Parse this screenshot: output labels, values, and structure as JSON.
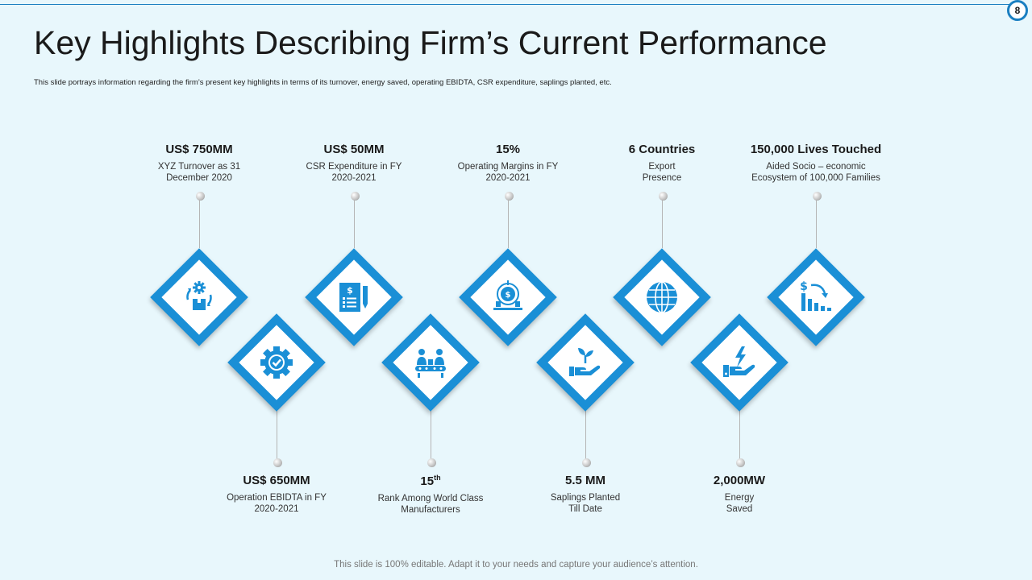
{
  "page": {
    "number": "8",
    "title": "Key Highlights Describing Firm’s Current Performance",
    "subtitle": "This slide portrays information regarding the firm’s present key highlights in terms of its turnover, energy saved, operating EBIDTA, CSR expenditure, saplings planted, etc.",
    "footer": "This slide is 100% editable. Adapt it to your needs and capture your audience’s attention."
  },
  "colors": {
    "accent": "#1a8fd6",
    "background": "#e8f7fc"
  },
  "highlights": [
    {
      "value": "US$ 750MM",
      "desc_1": "XYZ Turnover as 31",
      "desc_2": "December 2020",
      "icon": "gear-cycle-box-icon"
    },
    {
      "value": "US$ 650MM",
      "desc_1": "Operation EBIDTA in FY",
      "desc_2": "2020-2021",
      "icon": "gear-check-icon"
    },
    {
      "value": "US$ 50MM",
      "desc_1": "CSR Expenditure in FY",
      "desc_2": "2020-2021",
      "icon": "dollar-document-icon"
    },
    {
      "value": "15",
      "value_sup": "th",
      "desc_1": "Rank Among World Class",
      "desc_2": "Manufacturers",
      "icon": "workers-conveyor-icon"
    },
    {
      "value": "15%",
      "desc_1": "Operating Margins in FY",
      "desc_2": "2020-2021",
      "icon": "money-target-icon"
    },
    {
      "value": "5.5 MM",
      "desc_1": "Saplings Planted",
      "desc_2": "Till Date",
      "icon": "plant-hand-icon"
    },
    {
      "value": "6 Countries",
      "desc_1": "Export",
      "desc_2": "Presence",
      "icon": "globe-icon"
    },
    {
      "value": "2,000MW",
      "desc_1": "Energy",
      "desc_2": "Saved",
      "icon": "energy-hand-icon"
    },
    {
      "value": "150,000 Lives Touched",
      "desc_1": "Aided Socio – economic",
      "desc_2": "Ecosystem of 100,000 Families",
      "icon": "dollar-decline-chart-icon"
    }
  ]
}
